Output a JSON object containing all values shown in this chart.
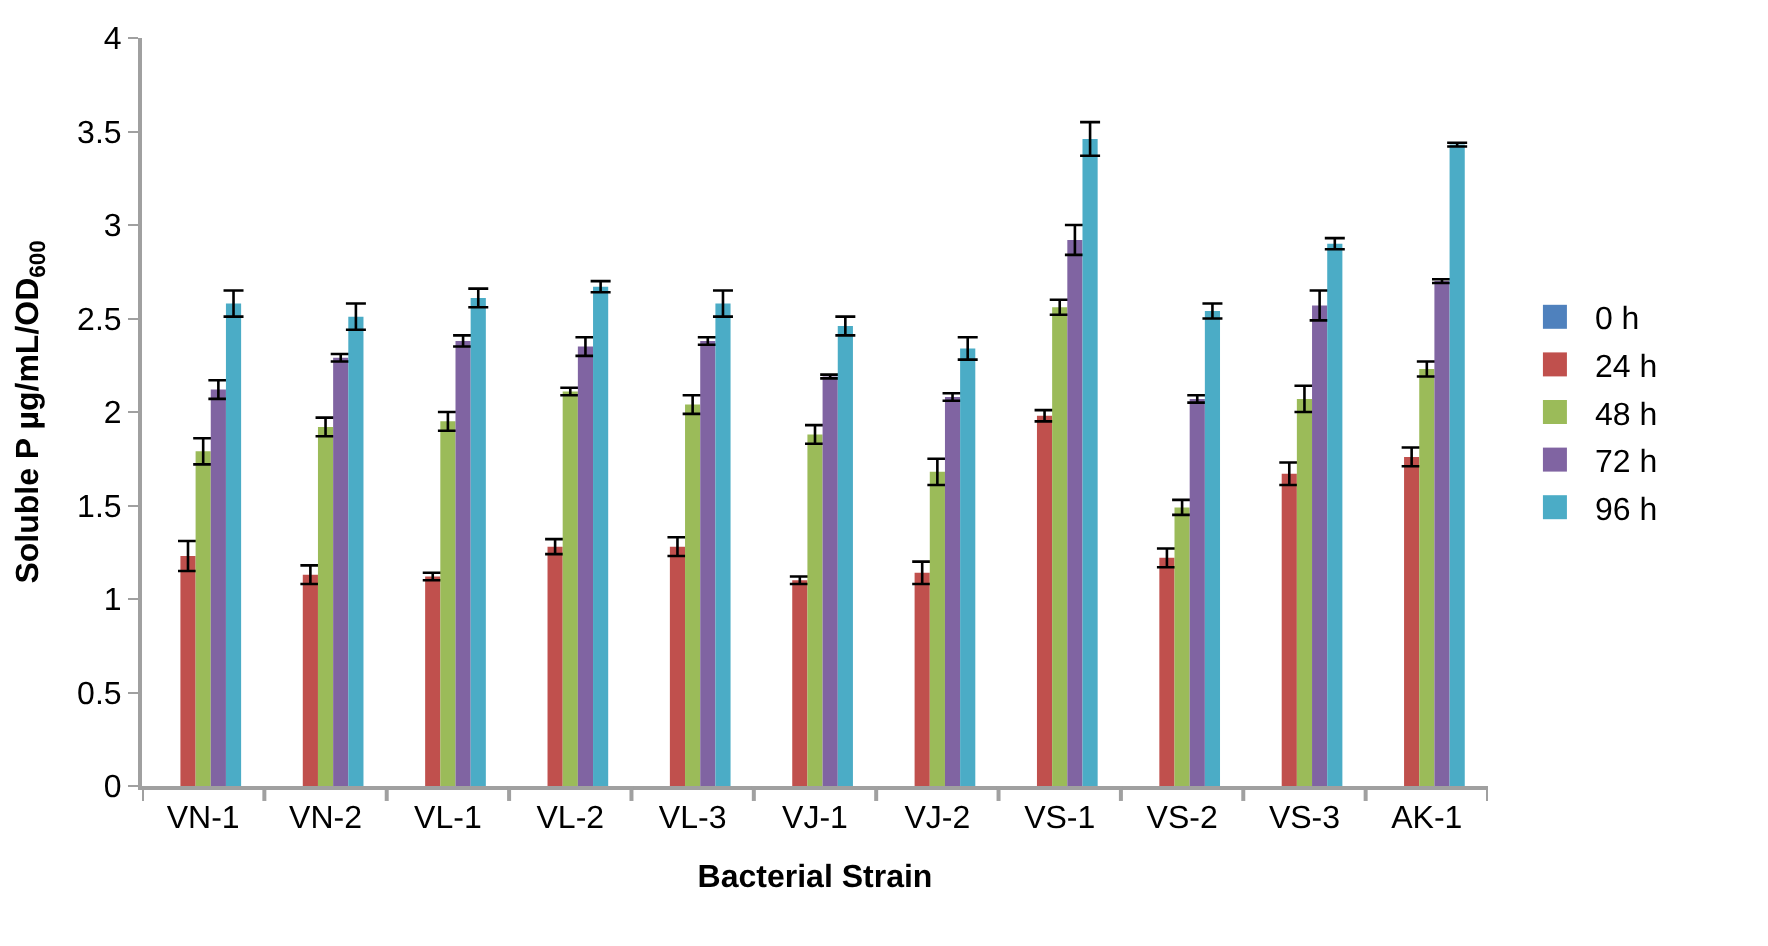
{
  "chart_data": {
    "type": "bar",
    "xlabel": "Bacterial Strain",
    "ylabel": "Soluble P µg/mL/OD$_{600}$",
    "categories": [
      "VN-1",
      "VN-2",
      "VL-1",
      "VL-2",
      "VL-3",
      "VJ-1",
      "VJ-2",
      "VS-1",
      "VS-2",
      "VS-3",
      "AK-1"
    ],
    "ylim": [
      0,
      4
    ],
    "yticks": [
      0,
      0.5,
      1,
      1.5,
      2,
      2.5,
      3,
      3.5,
      4
    ],
    "legend": "right",
    "series": [
      {
        "name": "0 h",
        "color": "#4f81bd",
        "values": [
          0,
          0,
          0,
          0,
          0,
          0,
          0,
          0,
          0,
          0,
          0
        ]
      },
      {
        "name": "24 h",
        "color": "#c0504d",
        "values": [
          1.23,
          1.13,
          1.12,
          1.28,
          1.28,
          1.1,
          1.14,
          1.98,
          1.22,
          1.67,
          1.76
        ],
        "errors": [
          0.08,
          0.05,
          0.02,
          0.04,
          0.05,
          0.02,
          0.06,
          0.03,
          0.05,
          0.06,
          0.05
        ]
      },
      {
        "name": "48 h",
        "color": "#9bbb59",
        "values": [
          1.79,
          1.92,
          1.95,
          2.11,
          2.04,
          1.88,
          1.68,
          2.56,
          1.49,
          2.07,
          2.23
        ],
        "errors": [
          0.07,
          0.05,
          0.05,
          0.02,
          0.05,
          0.05,
          0.07,
          0.04,
          0.04,
          0.07,
          0.04
        ]
      },
      {
        "name": "72 h",
        "color": "#8064a2",
        "values": [
          2.12,
          2.29,
          2.38,
          2.35,
          2.38,
          2.19,
          2.08,
          2.92,
          2.07,
          2.57,
          2.7
        ],
        "errors": [
          0.05,
          0.02,
          0.03,
          0.05,
          0.02,
          0.01,
          0.02,
          0.08,
          0.02,
          0.08,
          0.01
        ]
      },
      {
        "name": "96 h",
        "color": "#4bacc6",
        "values": [
          2.58,
          2.51,
          2.61,
          2.67,
          2.58,
          2.46,
          2.34,
          3.46,
          2.54,
          2.9,
          3.43
        ],
        "errors": [
          0.07,
          0.07,
          0.05,
          0.03,
          0.07,
          0.05,
          0.06,
          0.09,
          0.04,
          0.03,
          0.01
        ]
      }
    ]
  }
}
